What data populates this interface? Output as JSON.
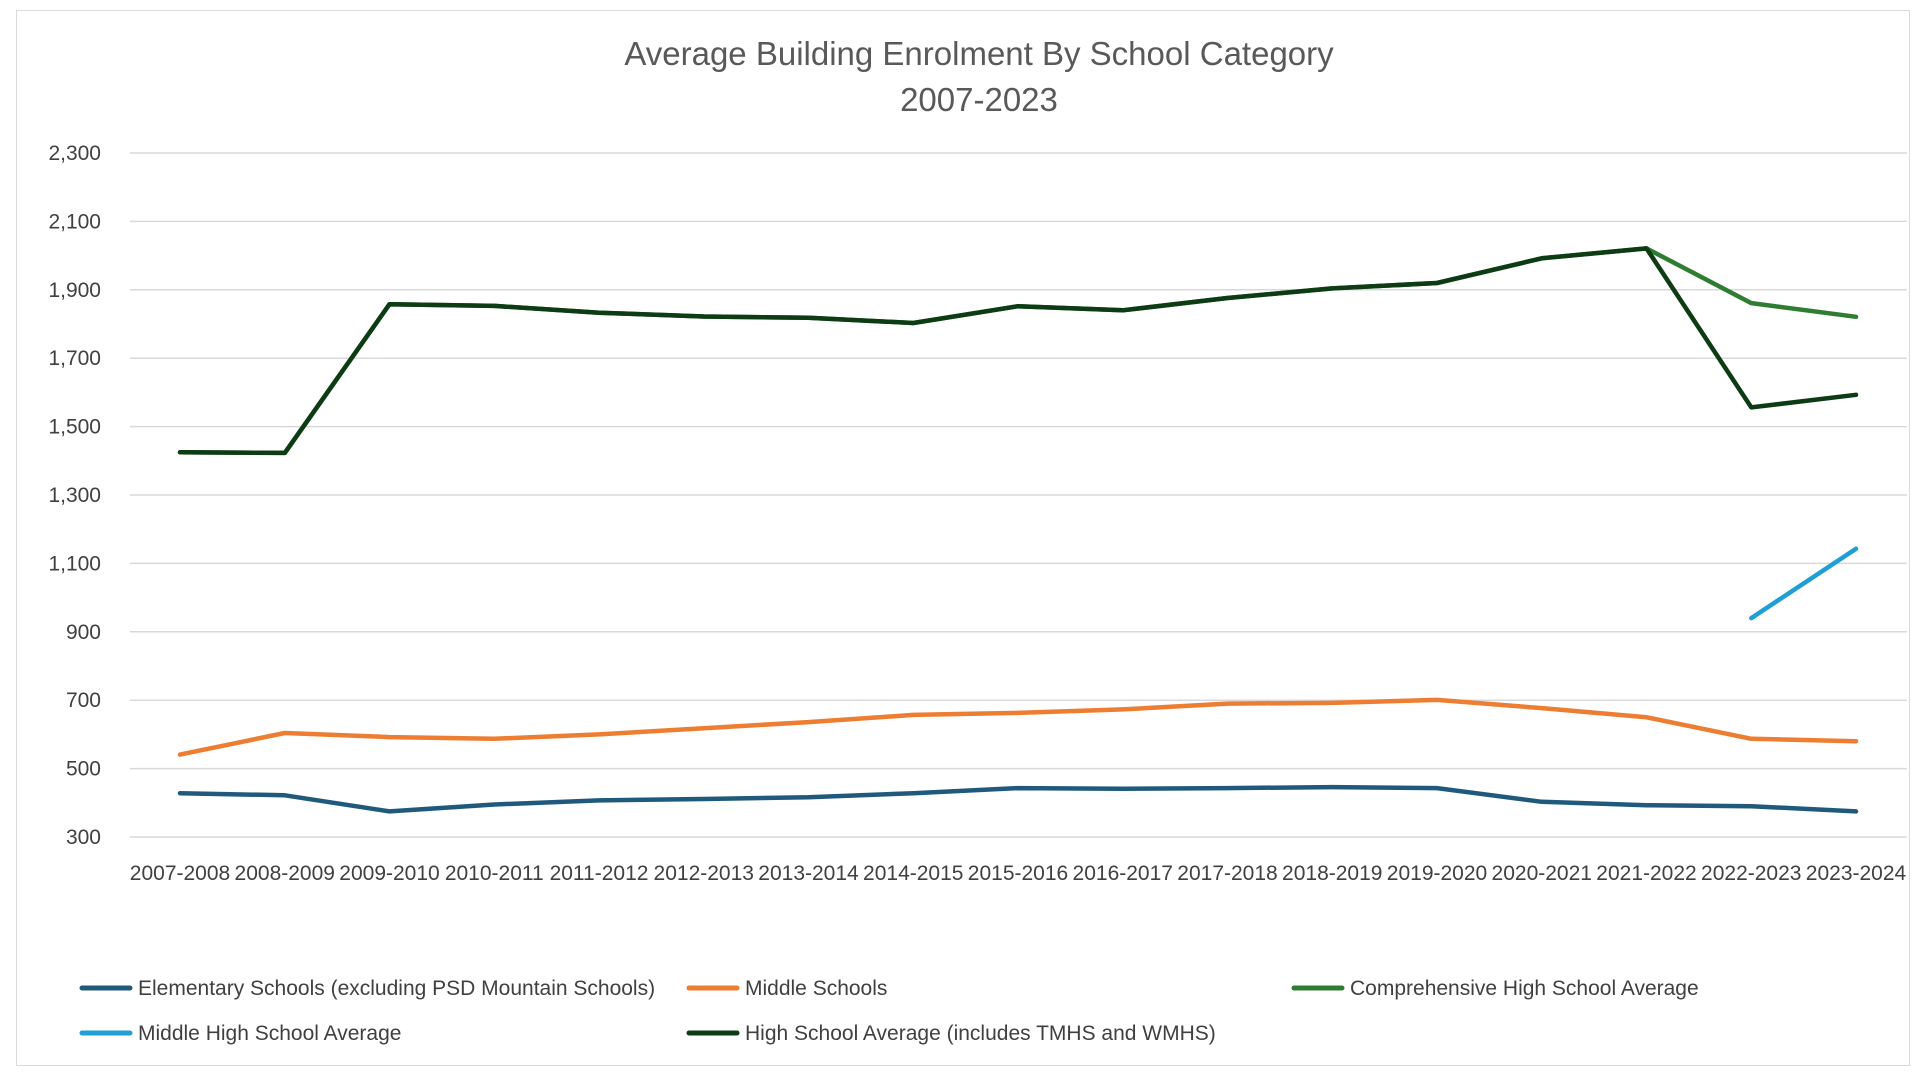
{
  "chart_data": {
    "type": "line",
    "title": "Average Building Enrolment By School Category",
    "subtitle": "2007-2023",
    "xlabel": "",
    "ylabel": "",
    "ylim": [
      300,
      2300
    ],
    "yticks": [
      "2,300",
      "2,100",
      "1,900",
      "1,700",
      "1,500",
      "1,300",
      "1,100",
      "900",
      "700",
      "500",
      "300"
    ],
    "ytick_values": [
      2300,
      2100,
      1900,
      1700,
      1500,
      1300,
      1100,
      900,
      700,
      500,
      300
    ],
    "grid": "horizontal",
    "legend_position": "bottom",
    "categories": [
      "2007-2008",
      "2008-2009",
      "2009-2010",
      "2010-2011",
      "2011-2012",
      "2012-2013",
      "2013-2014",
      "2014-2015",
      "2015-2016",
      "2016-2017",
      "2017-2018",
      "2018-2019",
      "2019-2020",
      "2020-2021",
      "2021-2022",
      "2022-2023",
      "2023-2024"
    ],
    "series": [
      {
        "name": "Elementary Schools (excluding PSD Mountain Schools)",
        "color": "#1f5a7d",
        "values": [
          428,
          422,
          375,
          395,
          407,
          411,
          416,
          428,
          443,
          441,
          443,
          446,
          443,
          403,
          393,
          390,
          375
        ]
      },
      {
        "name": "Middle Schools",
        "color": "#ed7d31",
        "values": [
          541,
          604,
          592,
          587,
          600,
          618,
          636,
          657,
          663,
          673,
          690,
          692,
          701,
          677,
          650,
          587,
          580
        ]
      },
      {
        "name": "Comprehensive High School Average",
        "color": "#2e7d32",
        "values": [
          1425,
          1423,
          1858,
          1853,
          1833,
          1822,
          1818,
          1803,
          1852,
          1840,
          1876,
          1904,
          1920,
          1992,
          2021,
          1861,
          1821
        ]
      },
      {
        "name": "Middle High School Average",
        "color": "#1f9fd4",
        "values": [
          null,
          null,
          null,
          null,
          null,
          null,
          null,
          null,
          null,
          null,
          null,
          null,
          null,
          null,
          null,
          940,
          1143
        ]
      },
      {
        "name": "High School Average (includes TMHS and WMHS)",
        "color": "#0d3b14",
        "values": [
          1425,
          1423,
          1858,
          1853,
          1833,
          1822,
          1818,
          1803,
          1852,
          1840,
          1876,
          1904,
          1920,
          1992,
          2021,
          1556,
          1593
        ]
      }
    ]
  }
}
